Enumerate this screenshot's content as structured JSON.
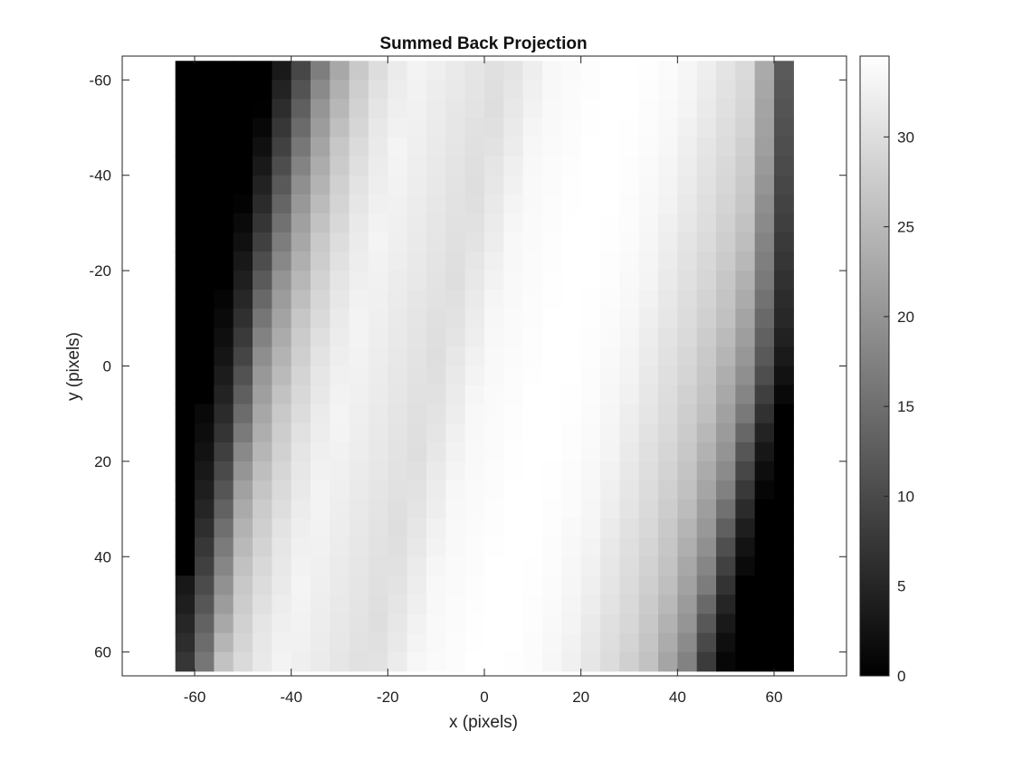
{
  "chart_data": {
    "type": "heatmap",
    "title": "Summed Back Projection",
    "xlabel": "x (pixels)",
    "ylabel": "y (pixels)",
    "xlim": [
      -75,
      75
    ],
    "ylim": [
      -65,
      65
    ],
    "y_reversed": true,
    "image_extent_x": [
      -64,
      64
    ],
    "image_extent_y": [
      -64,
      64
    ],
    "grid": false,
    "colormap": "gray",
    "x_ticks": [
      -60,
      -40,
      -20,
      0,
      20,
      40,
      60
    ],
    "y_ticks": [
      -60,
      -40,
      -20,
      0,
      20,
      40,
      60
    ],
    "colorbar": {
      "range": [
        0,
        34.5
      ],
      "ticks": [
        0,
        5,
        10,
        15,
        20,
        25,
        30
      ]
    },
    "profile_x": [
      -64,
      -58,
      -52,
      -46,
      -40,
      -34,
      -28,
      -22,
      -16,
      -10,
      -4,
      0,
      6,
      12,
      18,
      24,
      30,
      36,
      42,
      48,
      54,
      60,
      64
    ],
    "profile_values": [
      0,
      0,
      9,
      20,
      27,
      31,
      33,
      32,
      31,
      30,
      32,
      33.5,
      34,
      34.5,
      34.5,
      34,
      33,
      31,
      29,
      26,
      20,
      11,
      2
    ],
    "shear_slope_x_per_y": -0.22,
    "left_boundary_x_at_y": [
      [
        -64,
        -51
      ],
      [
        0,
        -57
      ],
      [
        64,
        -64
      ]
    ],
    "right_boundary_x_at_y": [
      [
        -64,
        64
      ],
      [
        0,
        64
      ],
      [
        64,
        50
      ]
    ]
  }
}
